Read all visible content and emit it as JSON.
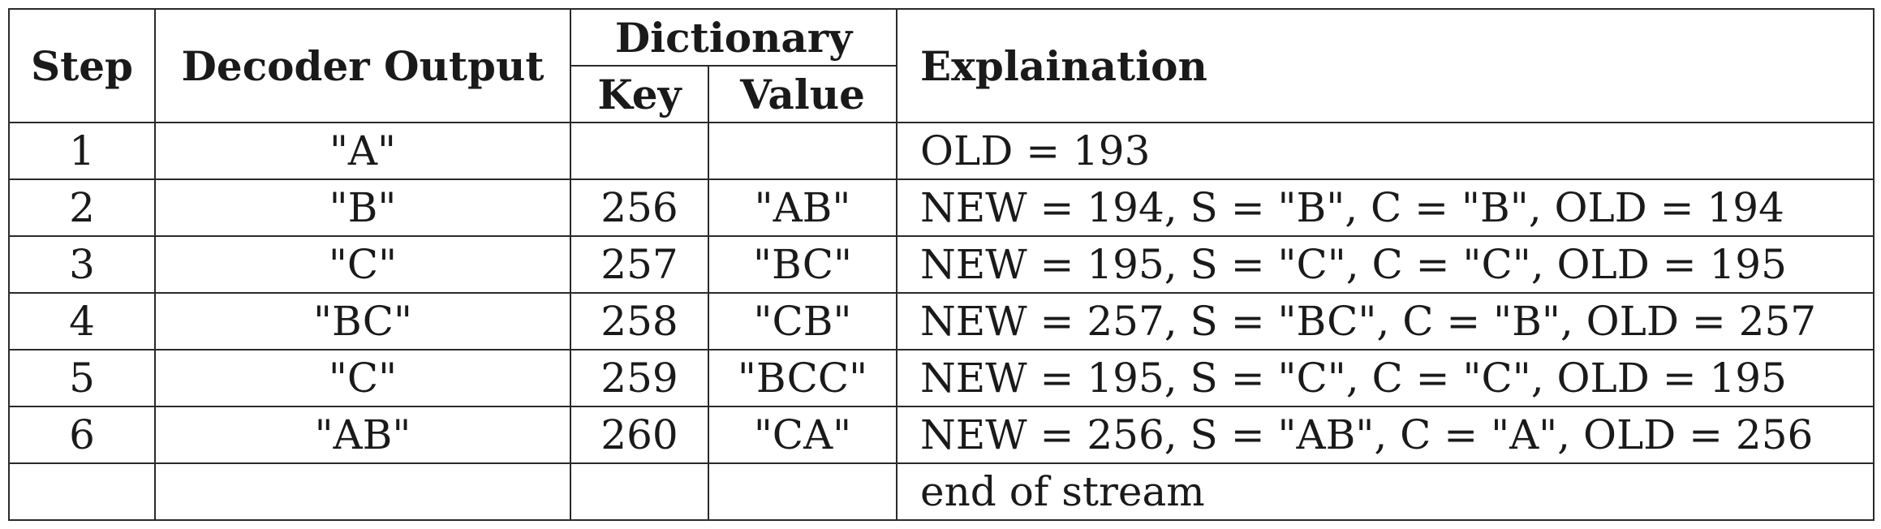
{
  "table": {
    "headers": {
      "step": "Step",
      "output": "Decoder Output",
      "dictionary": "Dictionary",
      "key": "Key",
      "value": "Value",
      "explanation": "Explaination"
    },
    "rows": [
      {
        "step": "1",
        "output": "\"A\"",
        "key": "",
        "value": "",
        "explanation": "OLD = 193"
      },
      {
        "step": "2",
        "output": "\"B\"",
        "key": "256",
        "value": "\"AB\"",
        "explanation": "NEW = 194, S = \"B\", C = \"B\", OLD = 194"
      },
      {
        "step": "3",
        "output": "\"C\"",
        "key": "257",
        "value": "\"BC\"",
        "explanation": "NEW = 195, S = \"C\", C = \"C\", OLD = 195"
      },
      {
        "step": "4",
        "output": "\"BC\"",
        "key": "258",
        "value": "\"CB\"",
        "explanation": "NEW = 257, S = \"BC\", C = \"B\", OLD = 257"
      },
      {
        "step": "5",
        "output": "\"C\"",
        "key": "259",
        "value": "\"BCC\"",
        "explanation": "NEW = 195, S = \"C\", C = \"C\", OLD = 195"
      },
      {
        "step": "6",
        "output": "\"AB\"",
        "key": "260",
        "value": "\"CA\"",
        "explanation": "NEW = 256, S = \"AB\", C = \"A\", OLD = 256"
      },
      {
        "step": "",
        "output": "",
        "key": "",
        "value": "",
        "explanation": "end of stream"
      }
    ]
  }
}
